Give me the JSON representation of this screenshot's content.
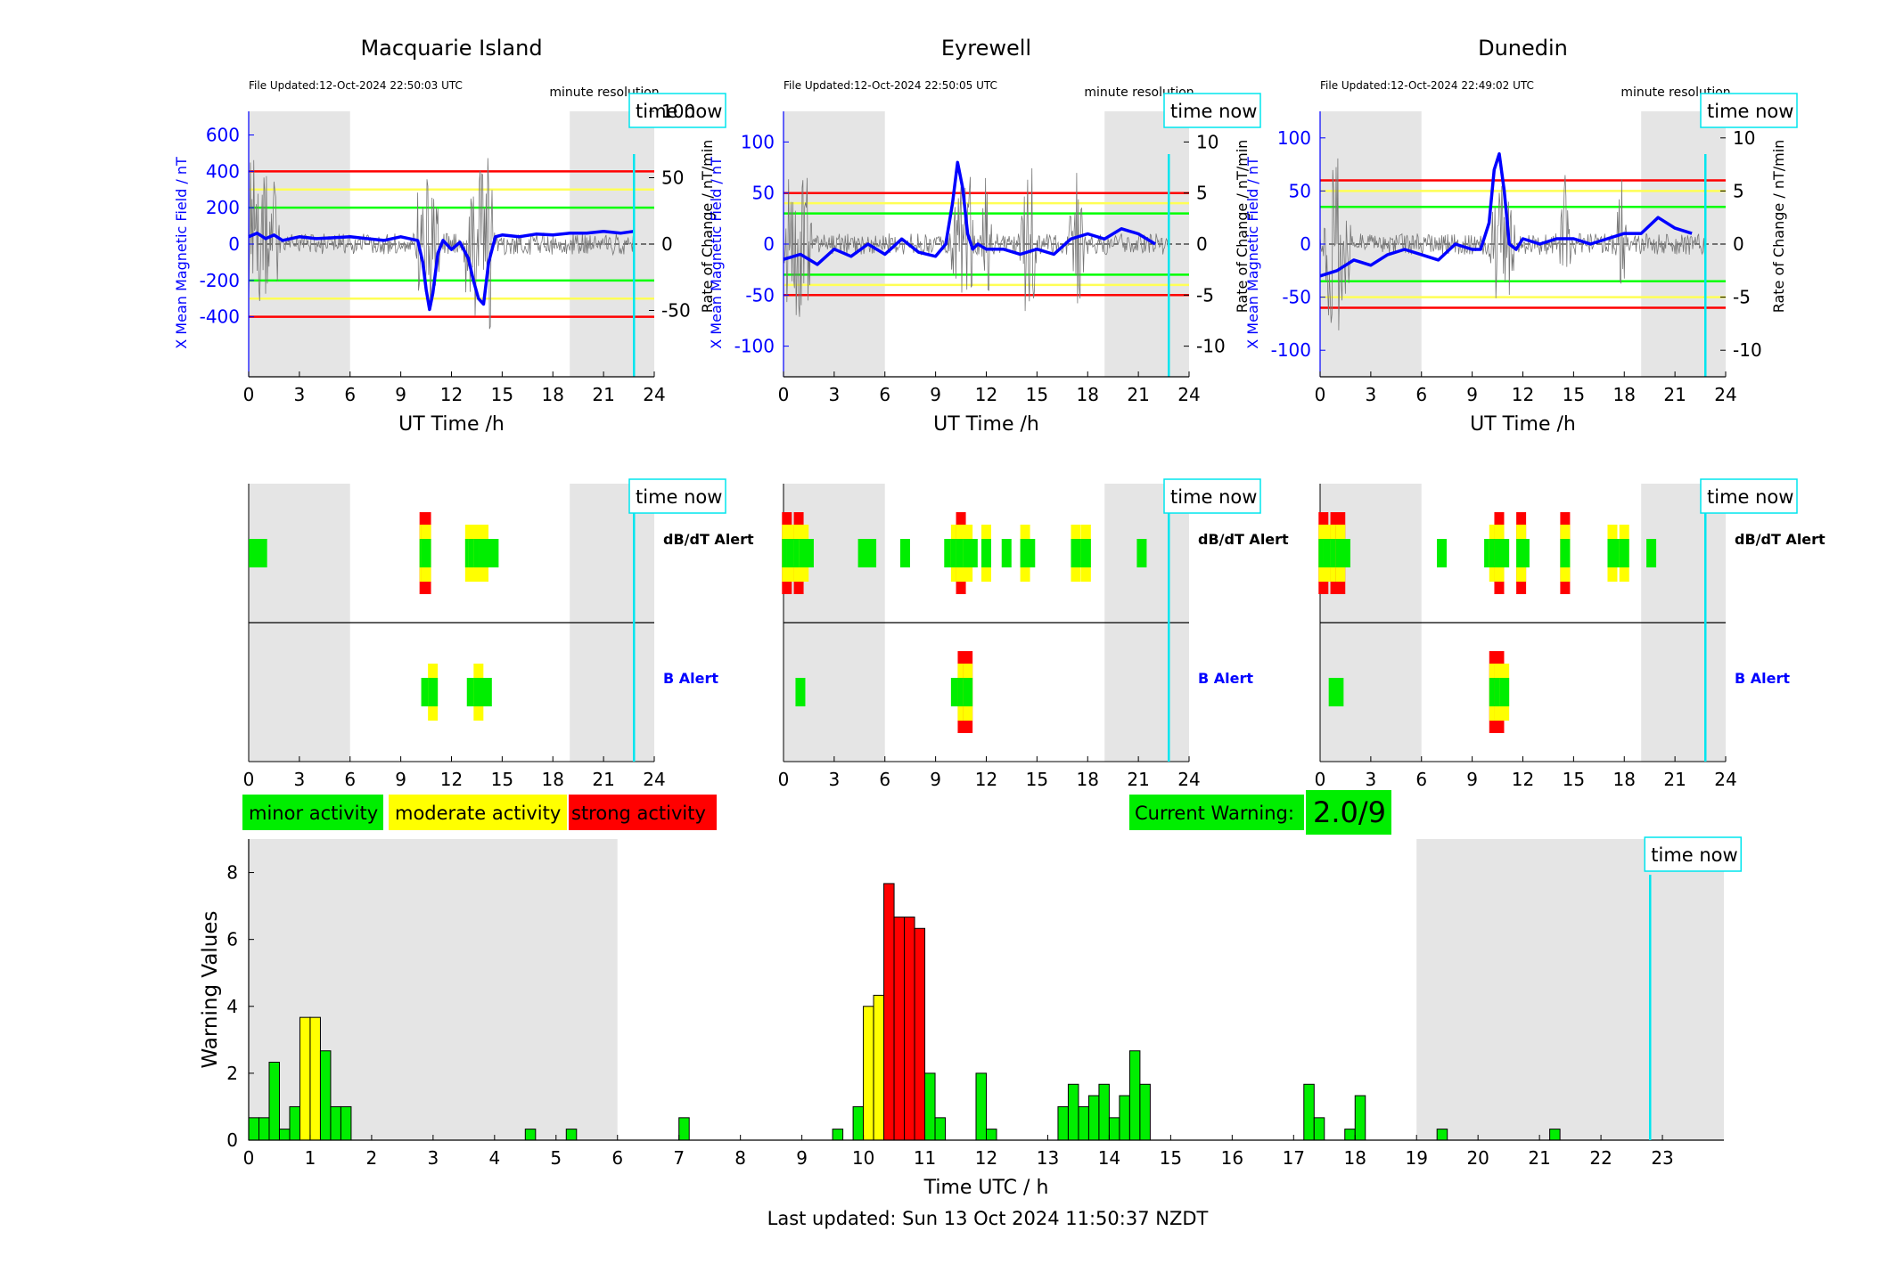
{
  "colors": {
    "blue": "#0000ff",
    "cyan": "#00e5ee",
    "green": "#00ee00",
    "yellow": "#ffff00",
    "red": "#ff0000",
    "night": "#e5e5e5",
    "thresh_green": "#00ff00",
    "thresh_yellow": "#ffff55",
    "thresh_red": "#ff0000"
  },
  "time_now_label": "time now",
  "time_now_h": 22.8,
  "chart_data": [
    {
      "type": "line",
      "title": "Macquarie Island",
      "file_updated": "File Updated:12-Oct-2024 22:50:03 UTC",
      "resolution": "minute resolution",
      "xlabel": "UT Time /h",
      "ylabel_left": "X Mean Magnetic Field / nT",
      "ylabel_right": "Rate of Change / nT/min",
      "xlim": [
        0,
        24
      ],
      "x_ticks": [
        0,
        3,
        6,
        9,
        12,
        15,
        18,
        21,
        24
      ],
      "ylim_left": [
        -730,
        730
      ],
      "y_ticks_left": [
        -400,
        -200,
        0,
        200,
        400,
        600
      ],
      "ylim_right": [
        -100,
        100
      ],
      "y_ticks_right": [
        -50,
        0,
        50,
        100
      ],
      "night_bands": [
        [
          0,
          6
        ],
        [
          19,
          24
        ]
      ],
      "thresholds": {
        "green": 200,
        "yellow": 300,
        "red": 400
      },
      "x_series": {
        "name": "X Mean Magnetic Field",
        "x": [
          0,
          0.5,
          1,
          1.5,
          2,
          3,
          4,
          5,
          6,
          7,
          8,
          9,
          10,
          10.3,
          10.5,
          10.7,
          10.9,
          11.2,
          11.5,
          12,
          12.5,
          13,
          13.3,
          13.6,
          13.9,
          14.2,
          14.6,
          15,
          16,
          17,
          18,
          19,
          20,
          21,
          22,
          22.8
        ],
        "y": [
          40,
          60,
          30,
          50,
          20,
          40,
          30,
          35,
          40,
          30,
          20,
          40,
          20,
          -100,
          -250,
          -360,
          -270,
          -50,
          20,
          -30,
          10,
          -80,
          -200,
          -300,
          -330,
          -100,
          40,
          50,
          40,
          55,
          50,
          60,
          60,
          70,
          60,
          70
        ]
      },
      "dbdt_spikes_h": [
        0.1,
        0.4,
        0.8,
        1.0,
        1.5,
        10.1,
        10.6,
        11.0,
        13.0,
        13.4,
        13.7,
        14.0,
        14.3
      ]
    },
    {
      "type": "line",
      "title": "Eyrewell",
      "file_updated": "File Updated:12-Oct-2024 22:50:05 UTC",
      "resolution": "minute resolution",
      "xlabel": "UT Time /h",
      "ylabel_left": "X Mean Magnetic Field / nT",
      "ylabel_right": "Rate of Change / nT/min",
      "xlim": [
        0,
        24
      ],
      "x_ticks": [
        0,
        3,
        6,
        9,
        12,
        15,
        18,
        21,
        24
      ],
      "ylim_left": [
        -130,
        130
      ],
      "y_ticks_left": [
        -100,
        -50,
        0,
        50,
        100
      ],
      "ylim_right": [
        -13,
        13
      ],
      "y_ticks_right": [
        -10,
        -5,
        0,
        5,
        10
      ],
      "night_bands": [
        [
          0,
          6
        ],
        [
          19,
          24
        ]
      ],
      "thresholds": {
        "green": 30,
        "yellow": 40,
        "red": 50
      },
      "x_series": {
        "name": "X Mean Magnetic Field",
        "x": [
          0,
          1,
          2,
          3,
          4,
          5,
          6,
          7,
          8,
          9,
          9.6,
          10,
          10.3,
          10.6,
          10.9,
          11.2,
          11.5,
          12,
          13,
          14,
          15,
          16,
          17,
          18,
          19,
          20,
          21,
          22
        ],
        "y": [
          -15,
          -10,
          -20,
          -5,
          -12,
          0,
          -10,
          5,
          -8,
          -12,
          0,
          40,
          80,
          55,
          10,
          -5,
          0,
          -5,
          -5,
          -10,
          -5,
          -10,
          5,
          10,
          5,
          15,
          10,
          0
        ]
      },
      "dbdt_spikes_h": [
        0.3,
        0.7,
        1.0,
        1.4,
        10.2,
        10.6,
        11.0,
        12.0,
        14.3,
        14.7,
        17.2,
        17.5
      ]
    },
    {
      "type": "line",
      "title": "Dunedin",
      "file_updated": "File Updated:12-Oct-2024 22:49:02 UTC",
      "resolution": "minute resolution",
      "xlabel": "UT Time /h",
      "ylabel_left": "X Mean Magnetic Field / nT",
      "ylabel_right": "Rate of Change / nT/min",
      "xlim": [
        0,
        24
      ],
      "x_ticks": [
        0,
        3,
        6,
        9,
        12,
        15,
        18,
        21,
        24
      ],
      "ylim_left": [
        -125,
        125
      ],
      "y_ticks_left": [
        -100,
        -50,
        0,
        50,
        100
      ],
      "ylim_right": [
        -12.5,
        12.5
      ],
      "y_ticks_right": [
        -10,
        -5,
        0,
        5,
        10
      ],
      "night_bands": [
        [
          0,
          6
        ],
        [
          19,
          24
        ]
      ],
      "thresholds": {
        "green": 35,
        "yellow": 50,
        "red": 60
      },
      "x_series": {
        "name": "X Mean Magnetic Field",
        "x": [
          0,
          1,
          2,
          3,
          4,
          5,
          6,
          7,
          8,
          9,
          9.5,
          10,
          10.3,
          10.6,
          10.9,
          11.2,
          11.6,
          12,
          13,
          14,
          15,
          16,
          17,
          18,
          19,
          20,
          21,
          22
        ],
        "y": [
          -30,
          -25,
          -15,
          -20,
          -10,
          -5,
          -10,
          -15,
          0,
          -5,
          -5,
          20,
          70,
          85,
          50,
          0,
          -5,
          5,
          0,
          5,
          5,
          0,
          5,
          10,
          10,
          25,
          15,
          10
        ]
      },
      "dbdt_spikes_h": [
        0.5,
        0.8,
        1.1,
        1.5,
        10.3,
        10.7,
        11.2,
        14.5,
        17.8
      ]
    },
    {
      "type": "alert-strip",
      "xlim": [
        0,
        24
      ],
      "x_ticks": [
        0,
        3,
        6,
        9,
        12,
        15,
        18,
        21,
        24
      ],
      "row_labels": {
        "dbdt": "dB/dT Alert",
        "b": "B Alert"
      },
      "dbdt": [
        [
          0.3,
          1,
          1
        ],
        [
          0.8,
          1,
          1
        ],
        [
          10.4,
          1,
          3
        ],
        [
          10.5,
          1,
          3
        ],
        [
          13.1,
          1,
          2
        ],
        [
          13.3,
          1,
          2
        ],
        [
          13.6,
          1,
          2
        ],
        [
          13.9,
          1,
          2
        ],
        [
          14.1,
          1,
          1
        ],
        [
          14.3,
          1,
          1
        ],
        [
          14.5,
          1,
          1
        ]
      ],
      "b": [
        [
          10.5,
          1,
          1
        ],
        [
          10.9,
          1,
          2
        ],
        [
          13.2,
          1,
          1
        ],
        [
          13.6,
          1,
          2
        ],
        [
          14.1,
          1,
          1
        ]
      ]
    },
    {
      "type": "alert-strip",
      "xlim": [
        0,
        24
      ],
      "x_ticks": [
        0,
        3,
        6,
        9,
        12,
        15,
        18,
        21,
        24
      ],
      "row_labels": {
        "dbdt": "dB/dT Alert",
        "b": "B Alert"
      },
      "dbdt": [
        [
          0.2,
          1,
          3
        ],
        [
          0.5,
          1,
          2
        ],
        [
          0.9,
          1,
          3
        ],
        [
          1.2,
          1,
          2
        ],
        [
          1.5,
          1,
          1
        ],
        [
          4.7,
          1,
          1
        ],
        [
          5.2,
          1,
          1
        ],
        [
          7.2,
          1,
          1
        ],
        [
          9.8,
          1,
          1
        ],
        [
          10.2,
          1,
          2
        ],
        [
          10.5,
          1,
          3
        ],
        [
          10.9,
          1,
          2
        ],
        [
          11.2,
          1,
          1
        ],
        [
          12.0,
          1,
          2
        ],
        [
          13.2,
          1,
          1
        ],
        [
          14.3,
          1,
          2
        ],
        [
          14.6,
          1,
          1
        ],
        [
          17.3,
          1,
          2
        ],
        [
          17.6,
          1,
          1
        ],
        [
          17.9,
          1,
          2
        ],
        [
          21.2,
          1,
          1
        ]
      ],
      "b": [
        [
          1.0,
          1,
          1
        ],
        [
          10.2,
          1,
          1
        ],
        [
          10.6,
          1,
          3
        ],
        [
          10.9,
          1,
          3
        ]
      ]
    },
    {
      "type": "alert-strip",
      "xlim": [
        0,
        24
      ],
      "x_ticks": [
        0,
        3,
        6,
        9,
        12,
        15,
        18,
        21,
        24
      ],
      "row_labels": {
        "dbdt": "dB/dT Alert",
        "b": "B Alert"
      },
      "dbdt": [
        [
          0.2,
          1,
          3
        ],
        [
          0.5,
          1,
          2
        ],
        [
          0.9,
          1,
          3
        ],
        [
          1.2,
          1,
          3
        ],
        [
          1.5,
          1,
          1
        ],
        [
          7.2,
          1,
          1
        ],
        [
          10.0,
          1,
          1
        ],
        [
          10.3,
          1,
          2
        ],
        [
          10.6,
          1,
          3
        ],
        [
          10.9,
          1,
          1
        ],
        [
          11.9,
          1,
          3
        ],
        [
          12.1,
          1,
          1
        ],
        [
          14.5,
          1,
          3
        ],
        [
          17.3,
          1,
          2
        ],
        [
          17.7,
          1,
          1
        ],
        [
          18.0,
          1,
          2
        ],
        [
          19.6,
          1,
          1
        ]
      ],
      "b": [
        [
          0.8,
          1,
          1
        ],
        [
          1.1,
          1,
          1
        ],
        [
          10.3,
          1,
          3
        ],
        [
          10.6,
          1,
          3
        ],
        [
          10.9,
          1,
          2
        ]
      ]
    },
    {
      "type": "bar",
      "xlabel": "Time UTC / h",
      "ylabel": "Warning Values",
      "xlim": [
        0,
        24
      ],
      "ylim": [
        0,
        9
      ],
      "x_ticks": [
        0,
        1,
        2,
        3,
        4,
        5,
        6,
        7,
        8,
        9,
        10,
        11,
        12,
        13,
        14,
        15,
        16,
        17,
        18,
        19,
        20,
        21,
        22,
        23
      ],
      "y_ticks": [
        0,
        2,
        4,
        6,
        8
      ],
      "night_bands": [
        [
          0,
          6
        ],
        [
          19,
          24
        ]
      ],
      "bin_width_h": 0.1667,
      "bars": {
        "x": [
          0,
          0.1667,
          0.3333,
          0.5,
          0.6667,
          0.8333,
          1.0,
          1.1667,
          1.3333,
          1.5,
          4.5,
          5.1667,
          7.0,
          9.5,
          9.8333,
          10.0,
          10.1667,
          10.3333,
          10.5,
          10.6667,
          10.8333,
          11.0,
          11.1667,
          11.8333,
          12.0,
          13.1667,
          13.3333,
          13.5,
          13.6667,
          13.8333,
          14.0,
          14.1667,
          14.3333,
          14.5,
          17.1667,
          17.3333,
          17.8333,
          18.0,
          19.3333,
          21.1667
        ],
        "values": [
          0.67,
          0.67,
          2.33,
          0.33,
          1.0,
          3.67,
          3.67,
          2.67,
          1.0,
          1.0,
          0.33,
          0.33,
          0.67,
          0.33,
          1.0,
          4.0,
          4.33,
          7.67,
          6.67,
          6.67,
          6.33,
          2.0,
          0.67,
          2.0,
          0.33,
          1.0,
          1.67,
          1.0,
          1.33,
          1.67,
          0.67,
          1.33,
          2.67,
          1.67,
          1.67,
          0.67,
          0.33,
          1.33,
          0.33,
          0.33
        ]
      }
    }
  ],
  "legend": {
    "minor": "minor activity",
    "moderate": "moderate activity",
    "strong": "strong activity"
  },
  "current_warning": {
    "label": "Current Warning:",
    "value": "2.0/9"
  },
  "footer": "Last updated: Sun 13 Oct 2024 11:50:37 NZDT"
}
